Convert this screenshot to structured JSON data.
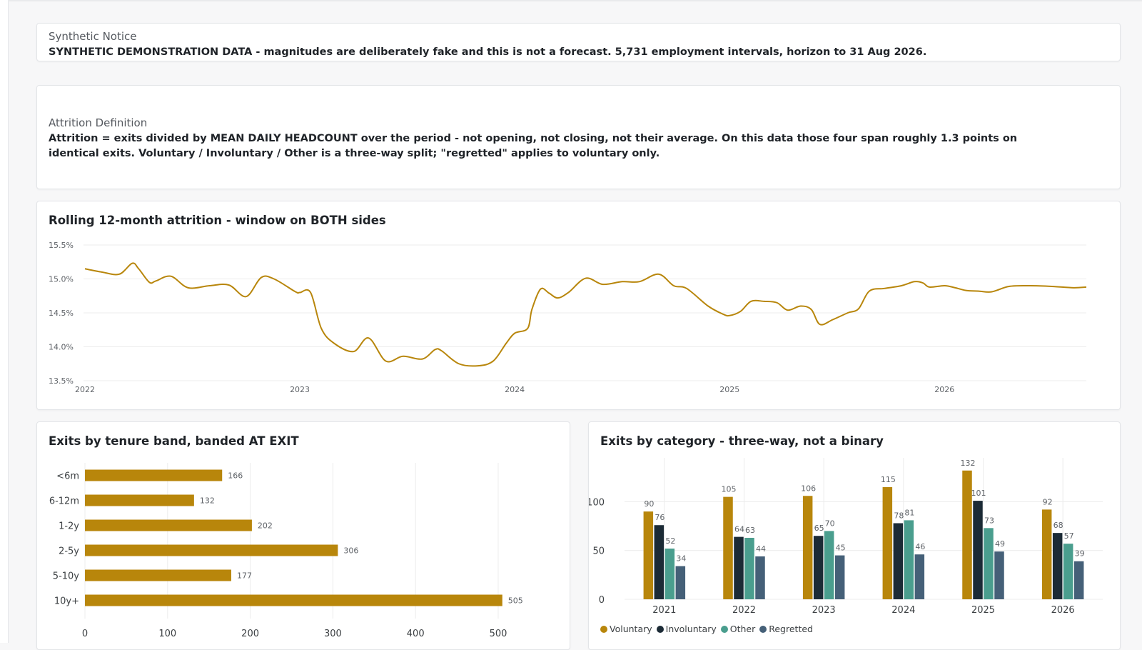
{
  "notice": {
    "title": "Synthetic Notice",
    "text": "SYNTHETIC DEMONSTRATION DATA - magnitudes are deliberately fake and this is not a forecast. 5,731 employment intervals, horizon to 31 Aug 2026."
  },
  "definition": {
    "title": "Attrition Definition",
    "text": "Attrition = exits divided by MEAN DAILY HEADCOUNT over the period - not opening, not closing, not their average. On this data those four span roughly 1.3 points on identical exits. Voluntary / Involuntary / Other is a three-way split; \"regretted\" applies to voluntary only."
  },
  "colors": {
    "voluntary": "#b8860b",
    "involuntary": "#1c2b36",
    "other": "#4a9e8e",
    "regretted": "#456078",
    "grid": "#ececec"
  },
  "chart_data": [
    {
      "type": "line",
      "title": "Rolling 12-month attrition - window on BOTH sides",
      "ylim": [
        13.5,
        15.5
      ],
      "y_ticks": [
        "15.5%",
        "15.0%",
        "14.5%",
        "14.0%",
        "13.5%"
      ],
      "x_ticks": [
        "2022",
        "2023",
        "2024",
        "2025",
        "2026"
      ],
      "x_tick_values": [
        2022.0,
        2023.0,
        2024.0,
        2025.0,
        2026.0
      ],
      "xlim": [
        2022.0,
        2026.66
      ],
      "grid": true,
      "series": [
        {
          "x": [
            2022.0,
            2022.08,
            2022.16,
            2022.22,
            2022.25,
            2022.3,
            2022.33,
            2022.4,
            2022.48,
            2022.58,
            2022.67,
            2022.75,
            2022.82,
            2022.88,
            2022.98,
            2023.0,
            2023.05,
            2023.1,
            2023.16,
            2023.25,
            2023.32,
            2023.4,
            2023.48,
            2023.57,
            2023.63,
            2023.66,
            2023.74,
            2023.83,
            2023.9,
            2023.96,
            2024.0,
            2024.06,
            2024.08,
            2024.12,
            2024.16,
            2024.2,
            2024.25,
            2024.33,
            2024.41,
            2024.5,
            2024.58,
            2024.67,
            2024.74,
            2024.8,
            2024.9,
            2024.97,
            2025.0,
            2025.05,
            2025.1,
            2025.16,
            2025.22,
            2025.27,
            2025.33,
            2025.38,
            2025.42,
            2025.48,
            2025.55,
            2025.6,
            2025.65,
            2025.72,
            2025.8,
            2025.86,
            2025.9,
            2025.93,
            2026.0,
            2026.05,
            2026.1,
            2026.16,
            2026.22,
            2026.3,
            2026.4,
            2026.5,
            2026.6,
            2026.66
          ],
          "y": [
            15.15,
            15.1,
            15.07,
            15.23,
            15.15,
            14.95,
            14.97,
            15.04,
            14.87,
            14.9,
            14.91,
            14.74,
            15.02,
            15.0,
            14.81,
            14.8,
            14.8,
            14.27,
            14.05,
            13.93,
            14.13,
            13.79,
            13.86,
            13.82,
            13.96,
            13.94,
            13.75,
            13.72,
            13.79,
            14.05,
            14.2,
            14.27,
            14.55,
            14.85,
            14.79,
            14.72,
            14.8,
            15.01,
            14.92,
            14.96,
            14.96,
            15.07,
            14.9,
            14.86,
            14.6,
            14.48,
            14.46,
            14.52,
            14.67,
            14.67,
            14.65,
            14.54,
            14.6,
            14.55,
            14.33,
            14.4,
            14.5,
            14.56,
            14.82,
            14.86,
            14.9,
            14.96,
            14.94,
            14.88,
            14.9,
            14.87,
            14.83,
            14.82,
            14.81,
            14.89,
            14.9,
            14.89,
            14.87,
            14.88
          ]
        }
      ]
    },
    {
      "type": "bar",
      "orientation": "horizontal",
      "title": "Exits by tenure band, banded AT EXIT",
      "categories": [
        "<6m",
        "6-12m",
        "1-2y",
        "2-5y",
        "5-10y",
        "10y+"
      ],
      "values": [
        166,
        132,
        202,
        306,
        177,
        505
      ],
      "xlim": [
        0,
        520
      ],
      "x_ticks": [
        "0",
        "100",
        "200",
        "300",
        "400",
        "500"
      ],
      "grid": true
    },
    {
      "type": "bar",
      "orientation": "vertical",
      "title": "Exits by category - three-way, not a binary",
      "categories": [
        "2021",
        "2022",
        "2023",
        "2024",
        "2025",
        "2026"
      ],
      "series": [
        {
          "name": "Voluntary",
          "values": [
            90,
            105,
            106,
            115,
            132,
            92
          ]
        },
        {
          "name": "Involuntary",
          "values": [
            76,
            64,
            65,
            78,
            101,
            68
          ]
        },
        {
          "name": "Other",
          "values": [
            52,
            63,
            70,
            81,
            73,
            57
          ]
        },
        {
          "name": "Regretted",
          "values": [
            34,
            44,
            45,
            46,
            49,
            39
          ]
        }
      ],
      "ylim": [
        0,
        145
      ],
      "y_ticks": [
        "100",
        "50",
        "0"
      ],
      "y_tick_values": [
        100,
        50,
        0
      ],
      "legend": "bottom-left",
      "grid": true
    }
  ]
}
